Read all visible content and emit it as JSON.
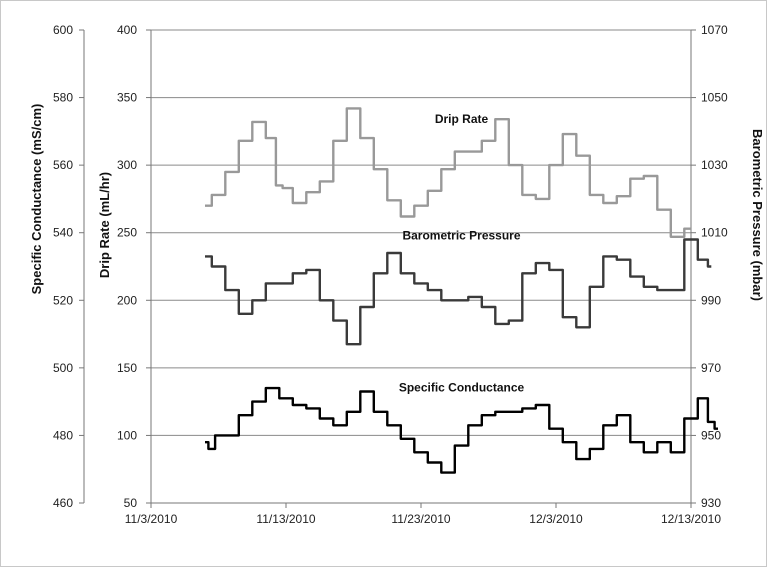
{
  "chart_data": {
    "type": "line",
    "x_axis": {
      "ticks": [
        "11/3/2010",
        "11/13/2010",
        "11/23/2010",
        "12/3/2010",
        "12/13/2010"
      ],
      "range": [
        "2010-11-03",
        "2010-12-13"
      ]
    },
    "axes": {
      "left_outer": {
        "label": "Specific Conductance (mS/cm)",
        "range": [
          460,
          600
        ],
        "ticks": [
          "460",
          "480",
          "500",
          "520",
          "540",
          "560",
          "580",
          "600"
        ]
      },
      "left_inner": {
        "label": "Drip Rate (mL/hr)",
        "range": [
          50,
          400
        ],
        "ticks": [
          "50",
          "100",
          "150",
          "200",
          "250",
          "300",
          "350",
          "400"
        ]
      },
      "right": {
        "label": "Barometric Pressure (mbar)",
        "range": [
          930,
          1070
        ],
        "ticks": [
          "930",
          "950",
          "970",
          "990",
          "1010",
          "1030",
          "1050",
          "1070"
        ]
      }
    },
    "grid": "horizontal",
    "legend": "none",
    "series": [
      {
        "name": "Drip Rate",
        "axis": "left_inner",
        "color": "#999999",
        "points": [
          [
            "2010-11-07",
            270
          ],
          [
            "2010-11-08",
            278
          ],
          [
            "2010-11-09",
            295
          ],
          [
            "2010-11-10",
            318
          ],
          [
            "2010-11-11",
            332
          ],
          [
            "2010-11-12",
            320
          ],
          [
            "2010-11-12.5",
            285
          ],
          [
            "2010-11-13",
            283
          ],
          [
            "2010-11-14",
            272
          ],
          [
            "2010-11-15",
            280
          ],
          [
            "2010-11-16",
            288
          ],
          [
            "2010-11-17",
            318
          ],
          [
            "2010-11-18",
            342
          ],
          [
            "2010-11-19",
            320
          ],
          [
            "2010-11-20",
            297
          ],
          [
            "2010-11-21",
            274
          ],
          [
            "2010-11-22",
            262
          ],
          [
            "2010-11-23",
            270
          ],
          [
            "2010-11-24",
            281
          ],
          [
            "2010-11-25",
            297
          ],
          [
            "2010-11-26",
            310
          ],
          [
            "2010-11-27",
            310
          ],
          [
            "2010-11-28",
            318
          ],
          [
            "2010-11-29",
            334
          ],
          [
            "2010-11-30",
            300
          ],
          [
            "2010-12-01",
            278
          ],
          [
            "2010-12-02",
            275
          ],
          [
            "2010-12-03",
            300
          ],
          [
            "2010-12-04",
            323
          ],
          [
            "2010-12-05",
            307
          ],
          [
            "2010-12-06",
            278
          ],
          [
            "2010-12-07",
            272
          ],
          [
            "2010-12-08",
            277
          ],
          [
            "2010-12-09",
            290
          ],
          [
            "2010-12-10",
            292
          ],
          [
            "2010-12-11",
            267
          ],
          [
            "2010-12-12",
            247
          ],
          [
            "2010-12-13",
            253
          ]
        ]
      },
      {
        "name": "Barometric Pressure",
        "axis": "right",
        "color": "#3a3a3a",
        "points": [
          [
            "2010-11-07",
            1003
          ],
          [
            "2010-11-08",
            1000
          ],
          [
            "2010-11-09",
            993
          ],
          [
            "2010-11-10",
            986
          ],
          [
            "2010-11-11",
            990
          ],
          [
            "2010-11-12",
            995
          ],
          [
            "2010-11-13",
            995
          ],
          [
            "2010-11-14",
            998
          ],
          [
            "2010-11-15",
            999
          ],
          [
            "2010-11-16",
            990
          ],
          [
            "2010-11-17",
            984
          ],
          [
            "2010-11-18",
            977
          ],
          [
            "2010-11-19",
            988
          ],
          [
            "2010-11-20",
            998
          ],
          [
            "2010-11-21",
            1004
          ],
          [
            "2010-11-22",
            998
          ],
          [
            "2010-11-23",
            995
          ],
          [
            "2010-11-24",
            993
          ],
          [
            "2010-11-25",
            990
          ],
          [
            "2010-11-26",
            990
          ],
          [
            "2010-11-27",
            991
          ],
          [
            "2010-11-28",
            988
          ],
          [
            "2010-11-29",
            983
          ],
          [
            "2010-11-30",
            984
          ],
          [
            "2010-12-01",
            998
          ],
          [
            "2010-12-02",
            1001
          ],
          [
            "2010-12-03",
            999
          ],
          [
            "2010-12-04",
            985
          ],
          [
            "2010-12-05",
            982
          ],
          [
            "2010-12-06",
            994
          ],
          [
            "2010-12-07",
            1003
          ],
          [
            "2010-12-08",
            1002
          ],
          [
            "2010-12-09",
            997
          ],
          [
            "2010-12-10",
            994
          ],
          [
            "2010-12-11",
            993
          ],
          [
            "2010-12-12",
            993
          ],
          [
            "2010-12-13",
            1008
          ],
          [
            "2010-12-14",
            1002
          ],
          [
            "2010-12-14.5",
            1000
          ]
        ]
      },
      {
        "name": "Specific Conductance",
        "axis": "left_outer",
        "color": "#000000",
        "points": [
          [
            "2010-11-07",
            478
          ],
          [
            "2010-11-07.5",
            476
          ],
          [
            "2010-11-08",
            480
          ],
          [
            "2010-11-09",
            480
          ],
          [
            "2010-11-10",
            486
          ],
          [
            "2010-11-11",
            490
          ],
          [
            "2010-11-12",
            494
          ],
          [
            "2010-11-13",
            491
          ],
          [
            "2010-11-14",
            489
          ],
          [
            "2010-11-15",
            488
          ],
          [
            "2010-11-16",
            485
          ],
          [
            "2010-11-17",
            483
          ],
          [
            "2010-11-18",
            487
          ],
          [
            "2010-11-19",
            493
          ],
          [
            "2010-11-20",
            487
          ],
          [
            "2010-11-21",
            483
          ],
          [
            "2010-11-22",
            479
          ],
          [
            "2010-11-23",
            475
          ],
          [
            "2010-11-24",
            472
          ],
          [
            "2010-11-25",
            469
          ],
          [
            "2010-11-26",
            477
          ],
          [
            "2010-11-27",
            483
          ],
          [
            "2010-11-28",
            486
          ],
          [
            "2010-11-29",
            487
          ],
          [
            "2010-11-30",
            487
          ],
          [
            "2010-12-01",
            488
          ],
          [
            "2010-12-02",
            489
          ],
          [
            "2010-12-03",
            482
          ],
          [
            "2010-12-04",
            478
          ],
          [
            "2010-12-05",
            473
          ],
          [
            "2010-12-06",
            476
          ],
          [
            "2010-12-07",
            483
          ],
          [
            "2010-12-08",
            486
          ],
          [
            "2010-12-09",
            478
          ],
          [
            "2010-12-10",
            475
          ],
          [
            "2010-12-11",
            478
          ],
          [
            "2010-12-12",
            475
          ],
          [
            "2010-12-13",
            485
          ],
          [
            "2010-12-14",
            491
          ],
          [
            "2010-12-14.5",
            484
          ],
          [
            "2010-12-15",
            482
          ]
        ]
      }
    ],
    "annotations": [
      {
        "text": "Drip Rate",
        "at": [
          "2010-11-26",
          331
        ],
        "axis": "left_inner"
      },
      {
        "text": "Barometric Pressure",
        "at": [
          "2010-11-26",
          1008
        ],
        "axis": "right"
      },
      {
        "text": "Specific Conductance",
        "at": [
          "2010-11-26",
          493
        ],
        "axis": "left_outer"
      }
    ]
  }
}
